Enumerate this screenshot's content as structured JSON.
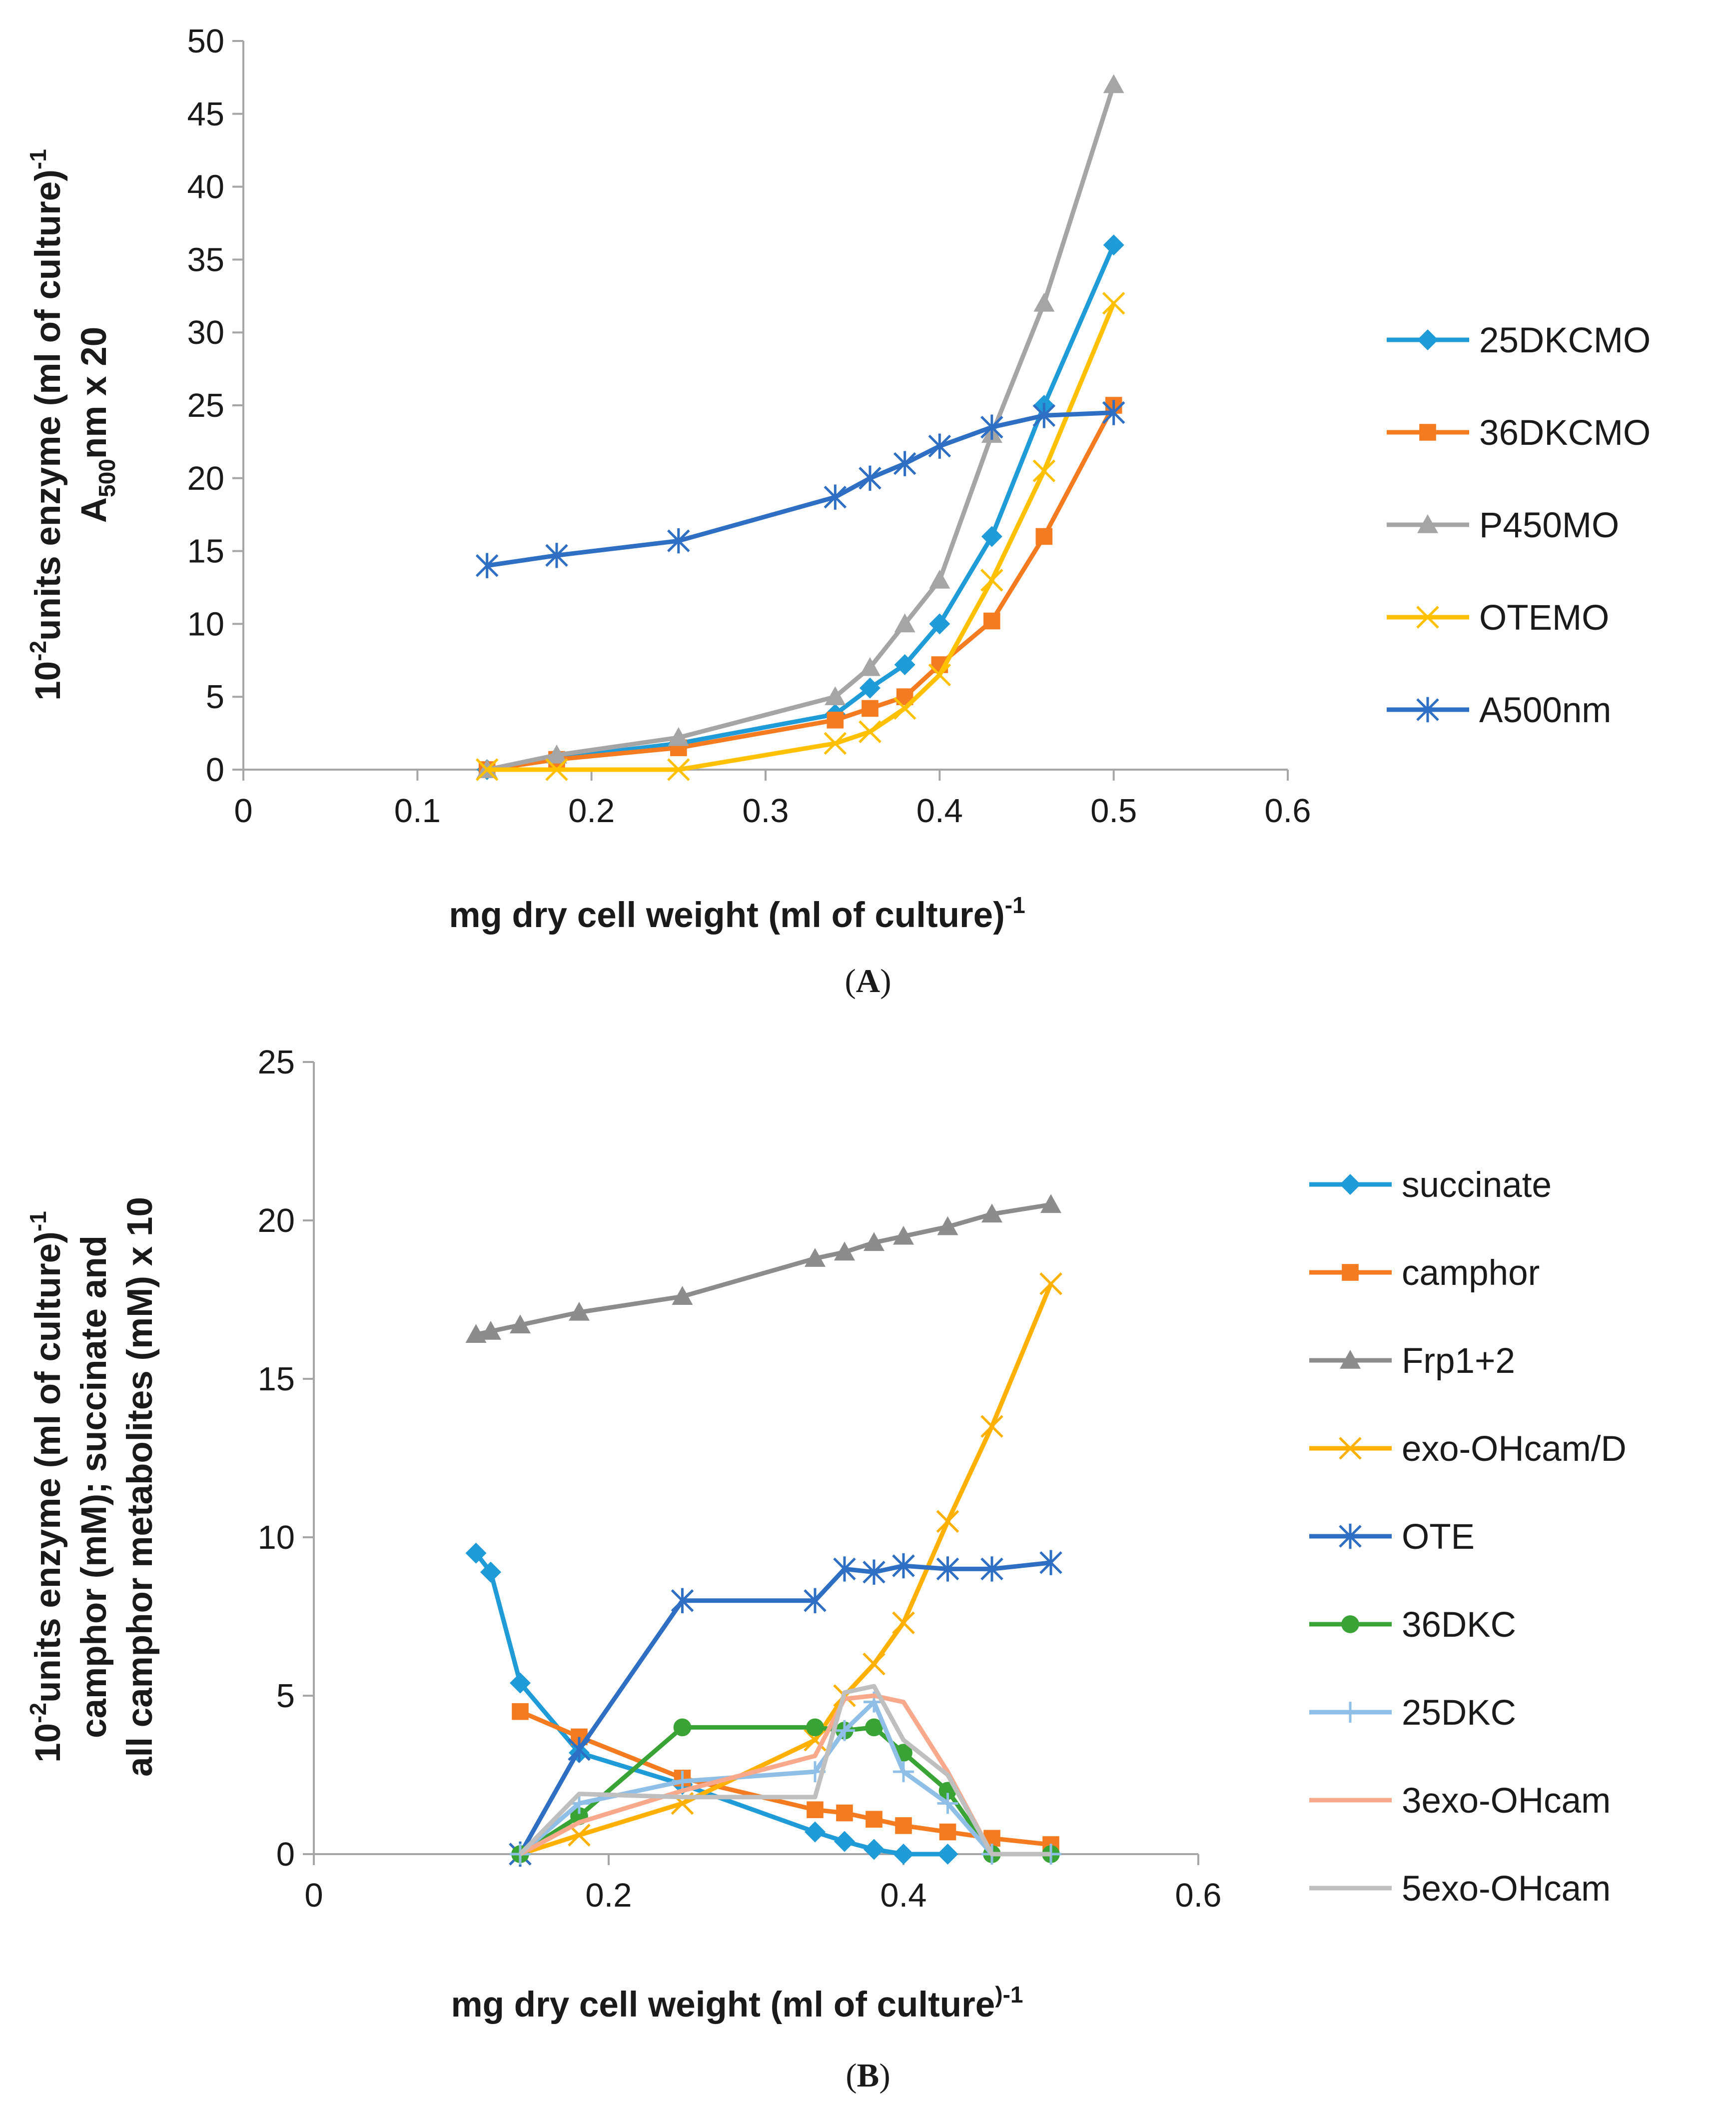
{
  "chart_data": [
    {
      "type": "line",
      "panel_label": "A",
      "xlabel": "mg dry cell weight (ml of culture)",
      "xlabel_sup": "-1",
      "ylabel_line1_prefix": "10",
      "ylabel_line1_sup": "-2",
      "ylabel_line1_mid": "units enzyme (ml of culture)",
      "ylabel_line1_sup2": "-1",
      "ylabel_line2_prefix": "A",
      "ylabel_line2_sub": "500",
      "ylabel_line2_rest": "nm x 20",
      "xlim": [
        0,
        0.6
      ],
      "ylim": [
        0,
        50
      ],
      "xticks": [
        "0",
        "0.1",
        "0.2",
        "0.3",
        "0.4",
        "0.5",
        "0.6"
      ],
      "yticks": [
        "0",
        "5",
        "10",
        "15",
        "20",
        "25",
        "30",
        "35",
        "40",
        "45",
        "50"
      ],
      "legend_position": "right",
      "series": [
        {
          "name": "25DKCMO",
          "color": "#1f9bd7",
          "marker": "diamond",
          "x": [
            0.14,
            0.18,
            0.25,
            0.34,
            0.36,
            0.38,
            0.4,
            0.43,
            0.46,
            0.5
          ],
          "y": [
            0,
            0.8,
            1.8,
            3.8,
            5.6,
            7.2,
            10,
            16,
            25,
            36
          ]
        },
        {
          "name": "36DKCMO",
          "color": "#f47b20",
          "marker": "square",
          "x": [
            0.14,
            0.18,
            0.25,
            0.34,
            0.36,
            0.38,
            0.4,
            0.43,
            0.46,
            0.5
          ],
          "y": [
            0,
            0.7,
            1.5,
            3.4,
            4.2,
            5,
            7.2,
            10.2,
            16,
            25
          ]
        },
        {
          "name": "P450MO",
          "color": "#a5a5a5",
          "marker": "triangle",
          "x": [
            0.14,
            0.18,
            0.25,
            0.34,
            0.36,
            0.38,
            0.4,
            0.43,
            0.46,
            0.5
          ],
          "y": [
            0,
            1,
            2.2,
            5,
            7,
            10,
            13,
            23,
            32,
            47
          ]
        },
        {
          "name": "OTEMO",
          "color": "#ffc000",
          "marker": "x",
          "x": [
            0.14,
            0.18,
            0.25,
            0.34,
            0.36,
            0.38,
            0.4,
            0.43,
            0.46,
            0.5
          ],
          "y": [
            0,
            0,
            0,
            1.8,
            2.6,
            4.2,
            6.5,
            13,
            20.5,
            32
          ]
        },
        {
          "name": "A500nm",
          "color": "#2e6fc4",
          "marker": "star",
          "x": [
            0.14,
            0.18,
            0.25,
            0.34,
            0.36,
            0.38,
            0.4,
            0.43,
            0.46,
            0.5
          ],
          "y": [
            14,
            14.7,
            15.7,
            18.7,
            20,
            21,
            22.2,
            23.5,
            24.3,
            24.5
          ]
        }
      ]
    },
    {
      "type": "line",
      "panel_label": "B",
      "xlabel": "mg dry cell weight (ml of culture",
      "xlabel_sup": ")-1",
      "ylabel_line1_prefix": "10",
      "ylabel_line1_sup": "-2",
      "ylabel_line1_mid": "units enzyme (ml of culture)",
      "ylabel_line1_sup2": "-1",
      "ylabel_line2": "camphor (mM);  succinate and",
      "ylabel_line3": "all camphor metabolites (mM) x 10",
      "xlim": [
        0,
        0.6
      ],
      "ylim": [
        0,
        25
      ],
      "xticks": [
        "0",
        "0.2",
        "0.4",
        "0.6"
      ],
      "yticks": [
        "0",
        "5",
        "10",
        "15",
        "20",
        "25"
      ],
      "legend_position": "right",
      "series": [
        {
          "name": "succinate",
          "color": "#1f9bd7",
          "marker": "diamond",
          "x": [
            0.11,
            0.12,
            0.14,
            0.18,
            0.25,
            0.34,
            0.36,
            0.38,
            0.4,
            0.43
          ],
          "y": [
            9.5,
            8.9,
            5.4,
            3.2,
            2.2,
            0.7,
            0.4,
            0.15,
            0,
            0
          ]
        },
        {
          "name": "camphor",
          "color": "#f47b20",
          "marker": "square",
          "x": [
            0.14,
            0.18,
            0.25,
            0.34,
            0.36,
            0.38,
            0.4,
            0.43,
            0.46,
            0.5
          ],
          "y": [
            4.5,
            3.7,
            2.4,
            1.4,
            1.3,
            1.1,
            0.9,
            0.7,
            0.5,
            0.3
          ]
        },
        {
          "name": "Frp1+2",
          "color": "#8c8c8c",
          "marker": "triangle",
          "x": [
            0.11,
            0.12,
            0.14,
            0.18,
            0.25,
            0.34,
            0.36,
            0.38,
            0.4,
            0.43,
            0.46,
            0.5
          ],
          "y": [
            16.4,
            16.5,
            16.7,
            17.1,
            17.6,
            18.8,
            19,
            19.3,
            19.5,
            19.8,
            20.2,
            20.5
          ]
        },
        {
          "name": "exo-OHcam/D",
          "color": "#ffb000",
          "marker": "x",
          "x": [
            0.14,
            0.18,
            0.25,
            0.34,
            0.36,
            0.38,
            0.4,
            0.43,
            0.46,
            0.5
          ],
          "y": [
            0,
            0.6,
            1.6,
            3.6,
            5,
            6,
            7.3,
            10.5,
            13.5,
            18
          ]
        },
        {
          "name": "OTE",
          "color": "#2e6fc4",
          "marker": "star",
          "x": [
            0.14,
            0.18,
            0.25,
            0.34,
            0.36,
            0.38,
            0.4,
            0.43,
            0.46,
            0.5
          ],
          "y": [
            0,
            3.3,
            8,
            8,
            9,
            8.9,
            9.1,
            9,
            9,
            9.2
          ]
        },
        {
          "name": "36DKC",
          "color": "#3aa335",
          "marker": "circle",
          "x": [
            0.14,
            0.18,
            0.25,
            0.34,
            0.36,
            0.38,
            0.4,
            0.43,
            0.46,
            0.5
          ],
          "y": [
            0,
            1.2,
            4,
            4,
            3.9,
            4,
            3.2,
            2,
            0,
            0
          ]
        },
        {
          "name": "25DKC",
          "color": "#8fbfe6",
          "marker": "plus",
          "x": [
            0.14,
            0.18,
            0.25,
            0.34,
            0.36,
            0.38,
            0.4,
            0.43,
            0.46,
            0.5
          ],
          "y": [
            0,
            1.6,
            2.3,
            2.6,
            3.9,
            4.8,
            2.6,
            1.6,
            0,
            0
          ]
        },
        {
          "name": "3exo-OHcam",
          "color": "#f8a98c",
          "marker": "none",
          "x": [
            0.14,
            0.18,
            0.25,
            0.34,
            0.36,
            0.38,
            0.4,
            0.43,
            0.46,
            0.5
          ],
          "y": [
            0,
            1,
            2,
            3.1,
            4.9,
            5,
            4.8,
            2.6,
            0,
            0
          ]
        },
        {
          "name": "5exo-OHcam",
          "color": "#bfbfbf",
          "marker": "none",
          "x": [
            0.14,
            0.18,
            0.25,
            0.34,
            0.36,
            0.38,
            0.4,
            0.43,
            0.46,
            0.5
          ],
          "y": [
            0,
            1.9,
            1.8,
            1.8,
            5.1,
            5.3,
            3.6,
            2.5,
            0,
            0
          ]
        }
      ]
    }
  ]
}
